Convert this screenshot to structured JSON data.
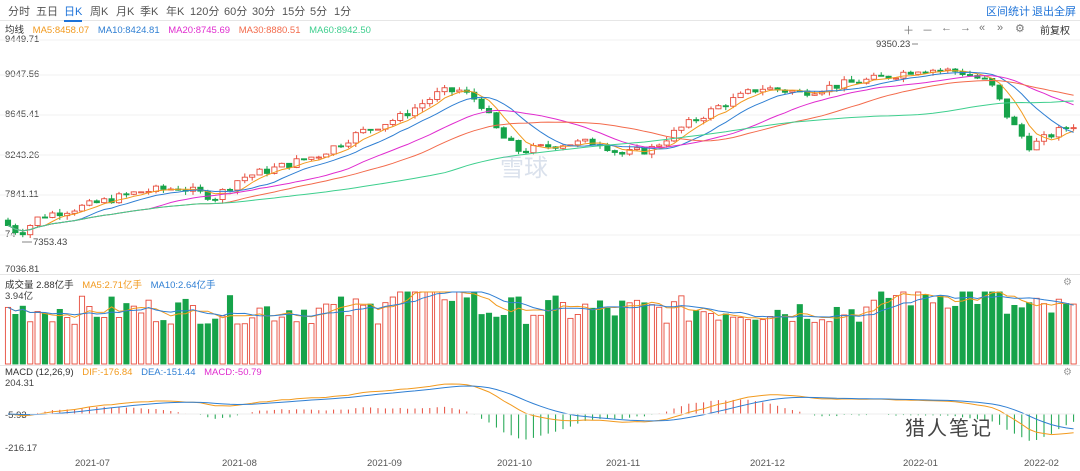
{
  "tabs": [
    "分时",
    "五日",
    "日K",
    "周K",
    "月K",
    "季K",
    "年K",
    "120分",
    "60分",
    "30分",
    "15分",
    "5分",
    "1分"
  ],
  "active_tab": "日K",
  "top_links": {
    "range_stats": "区间统计",
    "exit_fullscreen": "退出全屏"
  },
  "restore_rights": "前复权",
  "price_legend": {
    "label": "均线",
    "ma5": "MA5:8458.07",
    "ma10": "MA10:8424.81",
    "ma20": "MA20:8745.69",
    "ma30": "MA30:8880.51",
    "ma60": "MA60:8942.50"
  },
  "volume_legend": {
    "label": "成交量 2.88亿手",
    "ma5": "MA5:2.71亿手",
    "ma10": "MA10:2.64亿手",
    "top": "3.94亿"
  },
  "macd_legend": {
    "label": "MACD (12,26,9)",
    "dif": "DIF:-176.84",
    "dea": "DEA:-151.44",
    "macd": "MACD:-50.79"
  },
  "price_axis": [
    "9449.71",
    "9047.56",
    "8645.41",
    "8243.26",
    "7841.11",
    "74",
    "7036.81"
  ],
  "macd_axis": [
    "204.31",
    "-5.93",
    "-216.17"
  ],
  "annotations": {
    "high": "9350.23",
    "low": "7353.43"
  },
  "x_labels": [
    "2021-07",
    "2021-08",
    "2021-09",
    "2021-10",
    "2021-11",
    "2021-12",
    "2022-01",
    "2022-02"
  ],
  "watermark": "雪球",
  "signature": "猎人笔记",
  "colors": {
    "up": "#e74c3c",
    "down": "#16a34a",
    "ma5": "#f29a1e",
    "ma10": "#2f7fd3",
    "ma20": "#e02ccf",
    "ma30": "#f36b4c",
    "ma60": "#3ecf8e",
    "dif": "#f29a1e",
    "dea": "#2f7fd3"
  },
  "chart_data": {
    "type": "candlestick",
    "period": "daily",
    "ylim": [
      7036.81,
      9449.71
    ],
    "high": 9350.23,
    "low": 7353.43,
    "ma_last": {
      "MA5": 8458.07,
      "MA10": 8424.81,
      "MA20": 8745.69,
      "MA30": 8880.51,
      "MA60": 8942.5
    },
    "volume_last": "2.88亿手",
    "macd_last": {
      "DIF": -176.84,
      "DEA": -151.44,
      "MACD": -50.79
    },
    "macd_ylim": [
      -216.17,
      204.31
    ],
    "x_ticks": [
      "2021-07",
      "2021-08",
      "2021-09",
      "2021-10",
      "2021-11",
      "2021-12",
      "2022-01",
      "2022-02"
    ]
  }
}
